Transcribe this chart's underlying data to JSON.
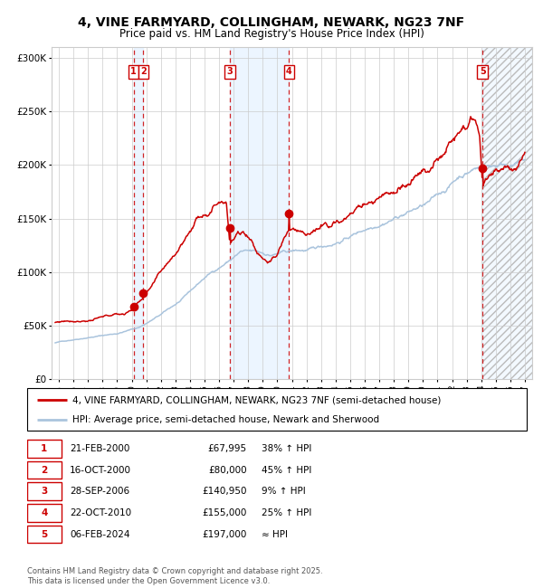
{
  "title": "4, VINE FARMYARD, COLLINGHAM, NEWARK, NG23 7NF",
  "subtitle": "Price paid vs. HM Land Registry's House Price Index (HPI)",
  "title_fontsize": 10,
  "subtitle_fontsize": 8.5,
  "xlim": [
    1994.5,
    2027.5
  ],
  "ylim": [
    0,
    310000
  ],
  "yticks": [
    0,
    50000,
    100000,
    150000,
    200000,
    250000,
    300000
  ],
  "ytick_labels": [
    "£0",
    "£50K",
    "£100K",
    "£150K",
    "£200K",
    "£250K",
    "£300K"
  ],
  "xticks": [
    1995,
    1996,
    1997,
    1998,
    1999,
    2000,
    2001,
    2002,
    2003,
    2004,
    2005,
    2006,
    2007,
    2008,
    2009,
    2010,
    2011,
    2012,
    2013,
    2014,
    2015,
    2016,
    2017,
    2018,
    2019,
    2020,
    2021,
    2022,
    2023,
    2024,
    2025,
    2026,
    2027
  ],
  "hpi_color": "#aac4dd",
  "price_color": "#cc0000",
  "dashed_line_color": "#cc0000",
  "sale_events": [
    {
      "num": 1,
      "year": 2000.13,
      "price": 67995,
      "label": "1"
    },
    {
      "num": 2,
      "year": 2000.8,
      "price": 80000,
      "label": "2"
    },
    {
      "num": 3,
      "year": 2006.74,
      "price": 140950,
      "label": "3"
    },
    {
      "num": 4,
      "year": 2010.81,
      "price": 155000,
      "label": "4"
    },
    {
      "num": 5,
      "year": 2024.1,
      "price": 197000,
      "label": "5"
    }
  ],
  "shade_ranges": [
    [
      2000.13,
      2000.8
    ],
    [
      2006.74,
      2010.81
    ]
  ],
  "hatch_start": 2024.1,
  "legend_entries": [
    {
      "color": "#cc0000",
      "label": "4, VINE FARMYARD, COLLINGHAM, NEWARK, NG23 7NF (semi-detached house)"
    },
    {
      "color": "#aac4dd",
      "label": "HPI: Average price, semi-detached house, Newark and Sherwood"
    }
  ],
  "table_rows": [
    {
      "num": "1",
      "date": "21-FEB-2000",
      "price": "£67,995",
      "change": "38% ↑ HPI"
    },
    {
      "num": "2",
      "date": "16-OCT-2000",
      "price": "£80,000",
      "change": "45% ↑ HPI"
    },
    {
      "num": "3",
      "date": "28-SEP-2006",
      "price": "£140,950",
      "change": "9% ↑ HPI"
    },
    {
      "num": "4",
      "date": "22-OCT-2010",
      "price": "£155,000",
      "change": "25% ↑ HPI"
    },
    {
      "num": "5",
      "date": "06-FEB-2024",
      "price": "£197,000",
      "change": "≈ HPI"
    }
  ],
  "footnote": "Contains HM Land Registry data © Crown copyright and database right 2025.\nThis data is licensed under the Open Government Licence v3.0.",
  "bg_color": "#ffffff",
  "grid_color": "#cccccc",
  "shade_color": "#ddeeff",
  "hatch_color": "#bbbbbb"
}
